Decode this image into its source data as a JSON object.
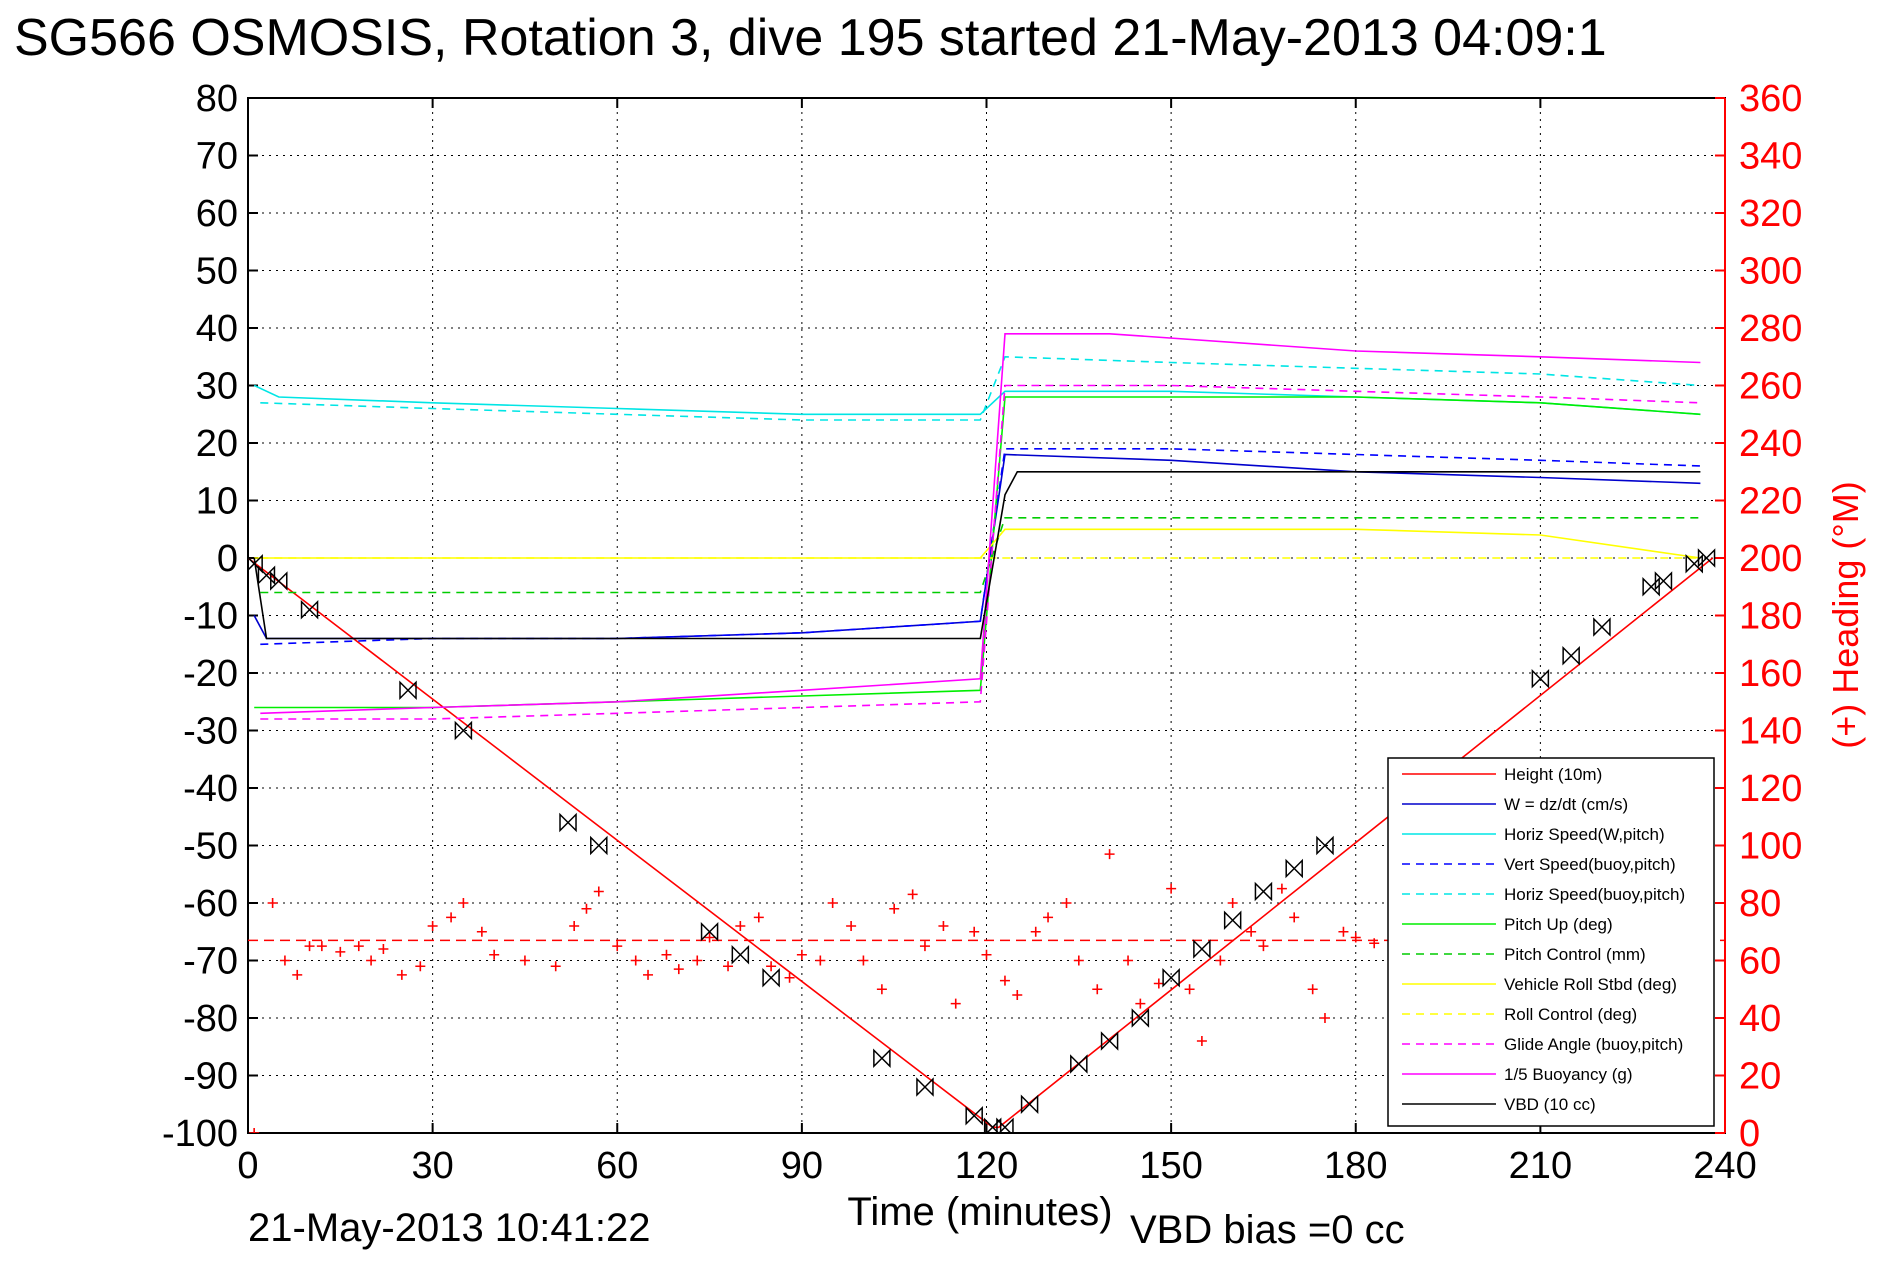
{
  "title": "SG566 OSMOSIS, Rotation 3, dive 195 started 21-May-2013 04:09:1",
  "footer": {
    "date": "21-May-2013 10:41:22",
    "vbd_bias": "VBD bias =0 cc"
  },
  "chart_data": {
    "type": "line",
    "xlabel": "Time (minutes)",
    "ylabel_right": "(+) Heading (°M)",
    "xlim": [
      0,
      240
    ],
    "ylim_left": [
      -100,
      80
    ],
    "ylim_right": [
      0,
      360
    ],
    "x_ticks": [
      0,
      30,
      60,
      90,
      120,
      150,
      180,
      210,
      240
    ],
    "y_ticks_left": [
      80,
      70,
      60,
      50,
      40,
      30,
      20,
      10,
      0,
      -10,
      -20,
      -30,
      -40,
      -50,
      -60,
      -70,
      -80,
      -90,
      -100
    ],
    "y_ticks_right": [
      360,
      340,
      320,
      300,
      280,
      260,
      240,
      220,
      200,
      180,
      160,
      140,
      120,
      100,
      80,
      60,
      40,
      20,
      0
    ],
    "grid": true,
    "legend_position": "bottom-right",
    "heading_mean": 67,
    "series": [
      {
        "name": "Height (10m)",
        "color": "#ff0000",
        "style": "solid",
        "x": [
          0,
          121,
          122,
          238
        ],
        "y": [
          0,
          -99,
          -99,
          0
        ]
      },
      {
        "name": "W = dz/dt (cm/s)",
        "color": "#0000cc",
        "style": "solid",
        "x": [
          1,
          3,
          30,
          60,
          90,
          119,
          123,
          150,
          180,
          210,
          236
        ],
        "y": [
          -10,
          -14,
          -14,
          -14,
          -13,
          -11,
          18,
          17,
          15,
          14,
          13
        ]
      },
      {
        "name": "Horiz Speed(W,pitch)",
        "color": "#00e5e5",
        "style": "solid",
        "x": [
          1,
          5,
          30,
          60,
          90,
          119,
          123,
          150,
          180,
          210,
          236
        ],
        "y": [
          30,
          28,
          27,
          26,
          25,
          25,
          29,
          29,
          28,
          27,
          25
        ]
      },
      {
        "name": "Vert Speed(buoy,pitch)",
        "color": "#0000ff",
        "style": "dashed",
        "x": [
          2,
          30,
          60,
          90,
          119,
          123,
          150,
          180,
          210,
          236
        ],
        "y": [
          -15,
          -14,
          -14,
          -13,
          -11,
          19,
          19,
          18,
          17,
          16
        ]
      },
      {
        "name": "Horiz Speed(buoy,pitch)",
        "color": "#00e5e5",
        "style": "dashed",
        "x": [
          2,
          30,
          60,
          90,
          119,
          123,
          150,
          180,
          210,
          236
        ],
        "y": [
          27,
          26,
          25,
          24,
          24,
          35,
          34,
          33,
          32,
          30
        ]
      },
      {
        "name": "Pitch Up (deg)",
        "color": "#00ee00",
        "style": "solid",
        "x": [
          1,
          30,
          60,
          90,
          119,
          123,
          150,
          180,
          210,
          236
        ],
        "y": [
          -26,
          -26,
          -25,
          -24,
          -23,
          28,
          28,
          28,
          27,
          25
        ]
      },
      {
        "name": "Pitch Control (mm)",
        "color": "#00cc00",
        "style": "dashed",
        "x": [
          2,
          30,
          60,
          90,
          119,
          123,
          150,
          180,
          210,
          236
        ],
        "y": [
          -6,
          -6,
          -6,
          -6,
          -6,
          7,
          7,
          7,
          7,
          7
        ]
      },
      {
        "name": "Vehicle Roll Stbd (deg)",
        "color": "#ffff00",
        "style": "solid",
        "x": [
          1,
          30,
          60,
          90,
          119,
          123,
          150,
          180,
          210,
          236
        ],
        "y": [
          0,
          0,
          0,
          0,
          0,
          5,
          5,
          5,
          4,
          0
        ]
      },
      {
        "name": "Roll Control (deg)",
        "color": "#ffff00",
        "style": "dashed",
        "x": [
          2,
          119,
          123,
          236
        ],
        "y": [
          0,
          0,
          0,
          0
        ]
      },
      {
        "name": "Glide Angle (buoy,pitch)",
        "color": "#ff00ff",
        "style": "dashed",
        "x": [
          2,
          30,
          60,
          90,
          119,
          123,
          150,
          180,
          210,
          236
        ],
        "y": [
          -28,
          -28,
          -27,
          -26,
          -25,
          30,
          30,
          29,
          28,
          27
        ]
      },
      {
        "name": "1/5 Buoyancy (g)",
        "color": "#ff00ff",
        "style": "solid",
        "x": [
          2,
          30,
          60,
          90,
          119,
          123,
          140,
          180,
          210,
          236
        ],
        "y": [
          -27,
          -26,
          -25,
          -23,
          -21,
          39,
          39,
          36,
          35,
          34
        ]
      },
      {
        "name": "VBD (10 cc)",
        "color": "#000000",
        "style": "solid",
        "x": [
          1,
          3,
          119,
          123,
          125,
          236
        ],
        "y": [
          0,
          -14,
          -14,
          11,
          15,
          15
        ]
      }
    ],
    "heading": {
      "name": "Heading (°M)",
      "color": "#ff0000",
      "marker": "+",
      "x": [
        1,
        4,
        6,
        8,
        10,
        12,
        15,
        18,
        20,
        22,
        25,
        28,
        30,
        33,
        35,
        38,
        40,
        45,
        50,
        53,
        55,
        57,
        60,
        63,
        65,
        68,
        70,
        73,
        75,
        78,
        80,
        83,
        85,
        88,
        90,
        93,
        95,
        98,
        100,
        103,
        105,
        108,
        110,
        113,
        115,
        118,
        120,
        123,
        125,
        128,
        130,
        133,
        135,
        138,
        140,
        143,
        145,
        148,
        150,
        153,
        155,
        158,
        160,
        163,
        165,
        168,
        170,
        173,
        175,
        178,
        180,
        183
      ],
      "y": [
        0,
        80,
        60,
        55,
        65,
        65,
        63,
        65,
        60,
        64,
        55,
        58,
        72,
        75,
        80,
        70,
        62,
        60,
        58,
        72,
        78,
        84,
        65,
        60,
        55,
        62,
        57,
        60,
        68,
        58,
        72,
        75,
        58,
        54,
        62,
        60,
        80,
        72,
        60,
        50,
        78,
        83,
        65,
        72,
        45,
        70,
        62,
        53,
        48,
        70,
        75,
        80,
        60,
        50,
        97,
        60,
        45,
        52,
        85,
        50,
        32,
        60,
        80,
        70,
        65,
        85,
        75,
        50,
        40,
        70,
        68,
        66
      ]
    },
    "markers": {
      "name": "Height markers",
      "color": "#000000",
      "x": [
        1,
        3,
        5,
        10,
        26,
        35,
        52,
        57,
        75,
        80,
        85,
        103,
        110,
        118,
        121,
        123,
        127,
        135,
        140,
        145,
        150,
        155,
        160,
        165,
        170,
        175,
        210,
        215,
        220,
        228,
        230,
        235,
        237
      ],
      "y": [
        -1,
        -3,
        -4,
        -9,
        -23,
        -30,
        -46,
        -50,
        -65,
        -69,
        -73,
        -87,
        -92,
        -97,
        -99,
        -99,
        -95,
        -88,
        -84,
        -80,
        -73,
        -68,
        -63,
        -58,
        -54,
        -50,
        -21,
        -17,
        -12,
        -5,
        -4,
        -1,
        0
      ]
    }
  }
}
